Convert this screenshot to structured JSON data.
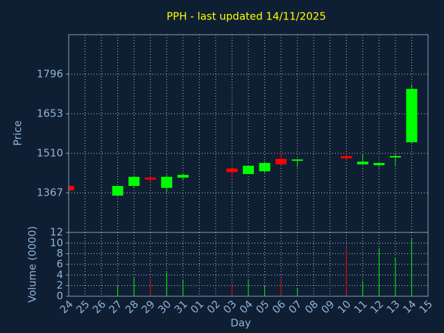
{
  "chart_data": [
    {
      "type": "candlestick",
      "title": "PPH - last updated 14/11/2025",
      "y_label": "Price",
      "open": [
        1392,
        null,
        null,
        1357,
        1392,
        1422,
        1385,
        1422,
        null,
        null,
        1455,
        1435,
        1445,
        1490,
        1483,
        null,
        null,
        1500,
        1470,
        1467,
        1495,
        1550,
        null
      ],
      "high": [
        1392,
        null,
        null,
        1392,
        1430,
        1430,
        1432,
        1437,
        null,
        null,
        1455,
        1467,
        1480,
        1512,
        1490,
        null,
        null,
        1512,
        1507,
        1477,
        1510,
        1760,
        null
      ],
      "low": [
        1376,
        null,
        null,
        1357,
        1385,
        1405,
        1370,
        1412,
        null,
        null,
        1420,
        1435,
        1440,
        1470,
        1460,
        null,
        null,
        1487,
        1470,
        1460,
        1462,
        1545,
        null
      ],
      "close": [
        1376,
        null,
        null,
        1392,
        1425,
        1415,
        1425,
        1432,
        null,
        null,
        1442,
        1465,
        1475,
        1470,
        1488,
        null,
        null,
        1492,
        1480,
        1475,
        1500,
        1743,
        null
      ],
      "up_color": "#00ff00",
      "down_color": "#ff0000",
      "ylim": [
        1224,
        1939
      ],
      "yticks": [
        1367,
        1510,
        1653,
        1796
      ],
      "grid": true
    },
    {
      "type": "bar",
      "y_label": "Volume (0000)",
      "x_label": "Day",
      "categories": [
        "24",
        "25",
        "26",
        "27",
        "28",
        "29",
        "30",
        "31",
        "01",
        "02",
        "03",
        "04",
        "05",
        "06",
        "07",
        "08",
        "09",
        "10",
        "11",
        "12",
        "13",
        "14",
        "15"
      ],
      "values": [
        0,
        null,
        null,
        2,
        3.5,
        3.2,
        4.5,
        3,
        null,
        null,
        2.2,
        3.2,
        2,
        3.3,
        1.5,
        null,
        null,
        9.3,
        2.8,
        9,
        7.2,
        10.8,
        null
      ],
      "ylim": [
        0,
        12
      ],
      "yticks": [
        0,
        2,
        4,
        6,
        8,
        10,
        12
      ],
      "grid": true
    }
  ]
}
